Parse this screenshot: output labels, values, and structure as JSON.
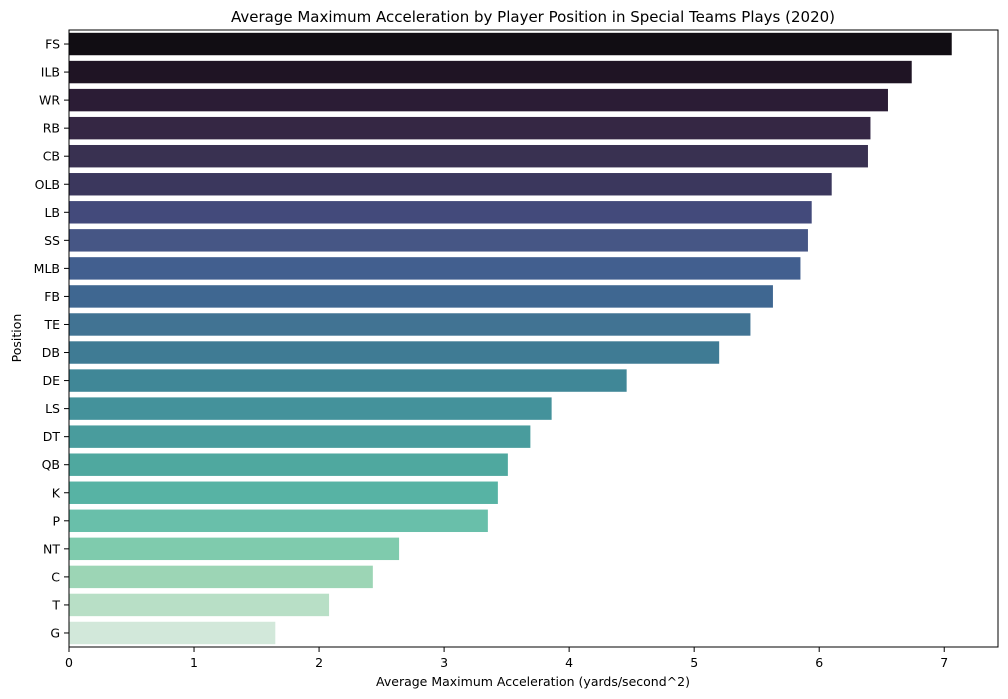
{
  "chart_data": {
    "type": "bar",
    "orientation": "horizontal",
    "title": "Average Maximum Acceleration by Player Position in Special Teams Plays (2020)",
    "xlabel": "Average Maximum Acceleration (yards/second^2)",
    "ylabel": "Position",
    "xlim": [
      0,
      7.43
    ],
    "xticks": [
      0,
      1,
      2,
      3,
      4,
      5,
      6,
      7
    ],
    "grid": false,
    "legend": "none",
    "palette": "mako",
    "categories": [
      "FS",
      "ILB",
      "WR",
      "RB",
      "CB",
      "OLB",
      "LB",
      "SS",
      "MLB",
      "FB",
      "TE",
      "DB",
      "DE",
      "LS",
      "DT",
      "QB",
      "K",
      "P",
      "NT",
      "C",
      "T",
      "G"
    ],
    "values": [
      7.06,
      6.74,
      6.55,
      6.41,
      6.39,
      6.1,
      5.94,
      5.91,
      5.85,
      5.63,
      5.45,
      5.2,
      4.46,
      3.86,
      3.69,
      3.51,
      3.43,
      3.35,
      2.64,
      2.43,
      2.08,
      1.65
    ],
    "colors": [
      "#110d13",
      "#1f1424",
      "#2b1c35",
      "#352744",
      "#393151",
      "#3b375d",
      "#434a7b",
      "#465685",
      "#425f8f",
      "#3f6791",
      "#417393",
      "#3f7b94",
      "#408797",
      "#44929b",
      "#499c9d",
      "#4fa89f",
      "#57b3a4",
      "#69bfaa",
      "#7fcbad",
      "#9cd5b5",
      "#b8dfc6",
      "#d2e8da"
    ]
  }
}
